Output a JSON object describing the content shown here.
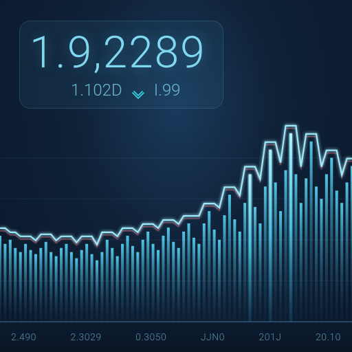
{
  "panel": {
    "price": "1.9,2289",
    "sub_value": "1.102D",
    "sub_change": "I.99"
  },
  "chart": {
    "type": "line+bar",
    "background_color": "#0f2238",
    "line_color": "#5eb8d8",
    "line_highlight": "#e6f7ff",
    "line_shadow": "#d04a5a",
    "line_width": 2.2,
    "bar_color": "#2a6a8a",
    "bar_glow": "#58d8f8",
    "grid_color": "rgba(100,160,200,0.12)",
    "yrange": [
      0,
      100
    ],
    "points": [
      42,
      38,
      40,
      36,
      34,
      38,
      35,
      33,
      36,
      39,
      34,
      32,
      36,
      38,
      34,
      31,
      35,
      38,
      33,
      30,
      34,
      40,
      36,
      32,
      38,
      42,
      37,
      34,
      40,
      44,
      38,
      35,
      42,
      46,
      39,
      36,
      44,
      48,
      41,
      38,
      48,
      54,
      45,
      40,
      52,
      62,
      50,
      44,
      58,
      72,
      56,
      48,
      66,
      84,
      68,
      54,
      74,
      92,
      72,
      58,
      70,
      88,
      66,
      60,
      72,
      80,
      64,
      58,
      68,
      76
    ],
    "spike_indices": [
      49,
      53,
      57
    ],
    "x_ticks": [
      "2.490",
      "2.3029",
      "0.3050",
      "JJN0",
      "201J",
      "20.10"
    ]
  },
  "colors": {
    "panel_text": "#7fd8f0",
    "sub_text": "#6cb8d0",
    "axis_text": "#5a8fa8",
    "chevron": "#38d8e8"
  }
}
